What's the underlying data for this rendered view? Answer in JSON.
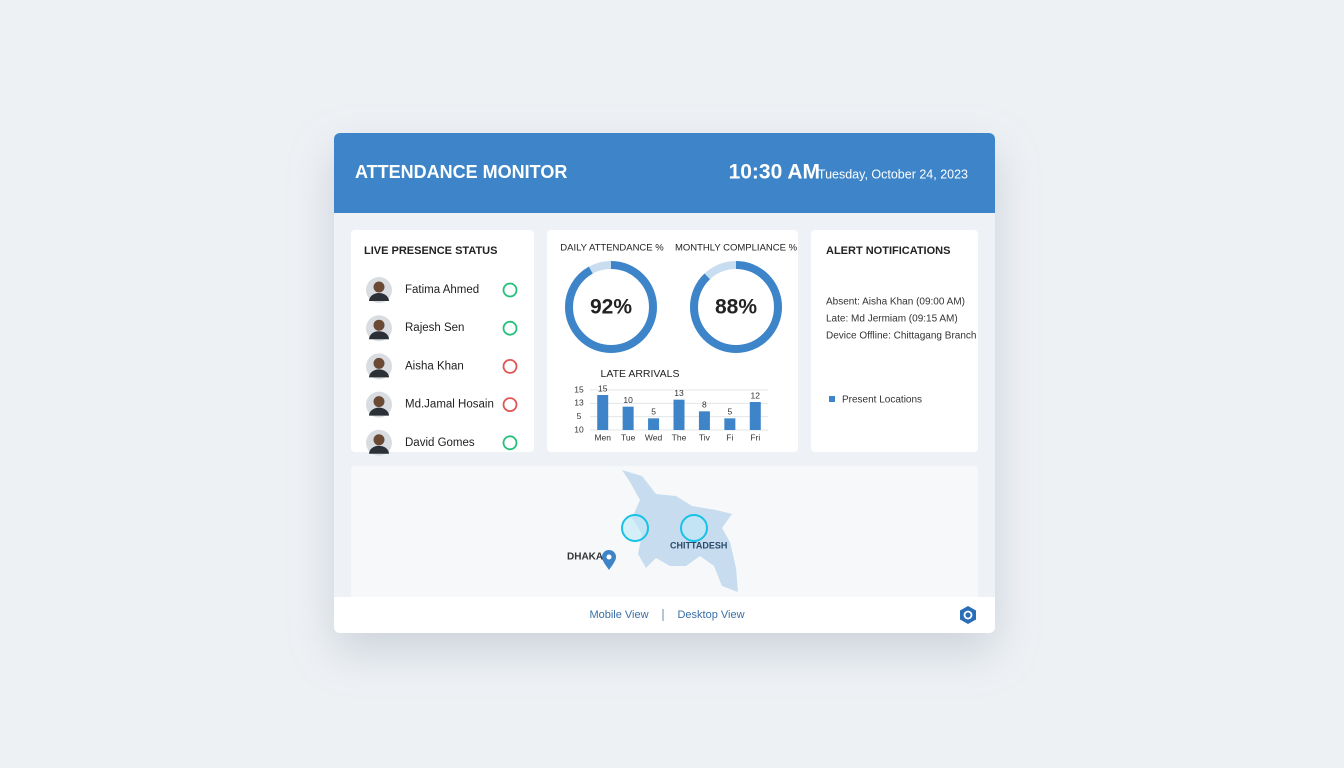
{
  "header": {
    "title": "ATTENDANCE MONITOR",
    "time": "10:30 AM",
    "date": "Tuesday, October 24, 2023"
  },
  "presence": {
    "title": "LIVE PRESENCE STATUS",
    "people": [
      {
        "name": "Fatima Ahmed",
        "color": "#22c07a"
      },
      {
        "name": "Rajesh Sen",
        "color": "#22c07a"
      },
      {
        "name": "Aisha Khan",
        "color": "#e05555"
      },
      {
        "name": "Md.Jamal Hosain",
        "color": "#e05555"
      },
      {
        "name": "David Gomes",
        "color": "#22c07a"
      }
    ]
  },
  "gauges": [
    {
      "title": "DAILY ATTENDANCE %",
      "value": 92,
      "value_label": "92%",
      "color": "#3d85c8"
    },
    {
      "title": "MONTHLY COMPLIANCE %",
      "value": 88,
      "value_label": "88%",
      "color": "#3d85c8"
    }
  ],
  "chart_data": {
    "type": "bar",
    "title": "LATE ARRIVALS",
    "categories": [
      "Men",
      "Tue",
      "Wed",
      "The",
      "Tiv",
      "Fi",
      "Fri"
    ],
    "values": [
      15,
      10,
      5,
      13,
      8,
      5,
      12
    ],
    "color": "#3d85c8",
    "ylim": [
      0,
      15
    ],
    "axis_text": [
      "15",
      "13",
      "5",
      "10"
    ]
  },
  "alerts": {
    "title": "ALERT NOTIFICATIONS",
    "items": [
      "Absent: Aisha Khan (09:00 AM)",
      "Late: Md Jermiam (09:15 AM)",
      "Device Offline: Chittagang Branch"
    ],
    "legend": "Present Locations"
  },
  "map": {
    "labels": [
      "DHAKA",
      "CHITTADESH"
    ]
  },
  "footer": {
    "links": [
      "Mobile View",
      "Desktop View"
    ]
  }
}
